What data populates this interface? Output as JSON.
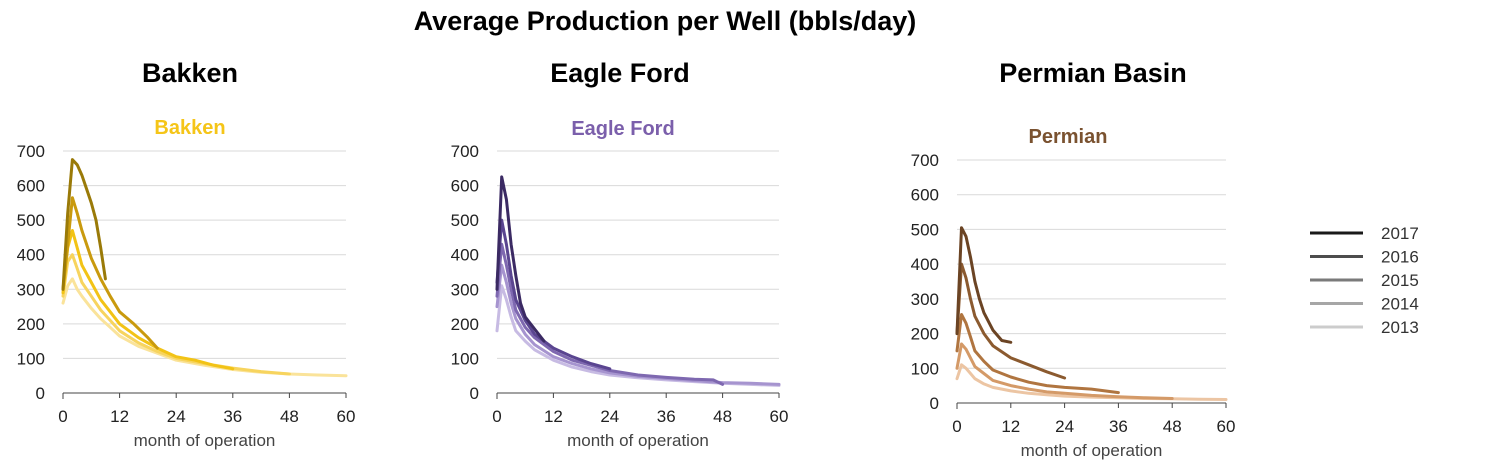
{
  "title": "Average Production per Well (bbls/day)",
  "panels": [
    {
      "heading": "Bakken"
    },
    {
      "heading": "Eagle Ford"
    },
    {
      "heading": "Permian Basin"
    }
  ],
  "legend": {
    "items": [
      {
        "label": "2017",
        "color": "#1a1a1a"
      },
      {
        "label": "2016",
        "color": "#4d4d4d"
      },
      {
        "label": "2015",
        "color": "#7a7a7a"
      },
      {
        "label": "2014",
        "color": "#a6a6a6"
      },
      {
        "label": "2013",
        "color": "#cccccc"
      }
    ]
  },
  "chart_data": [
    {
      "type": "line",
      "title": "Bakken",
      "title_color": "#f5c518",
      "xlabel": "month of operation",
      "ylabel": "",
      "xlim": [
        0,
        60
      ],
      "ylim": [
        0,
        700
      ],
      "xticks": [
        0,
        12,
        24,
        36,
        48,
        60
      ],
      "yticks": [
        0,
        100,
        200,
        300,
        400,
        500,
        600,
        700
      ],
      "grid": true,
      "series": [
        {
          "name": "2017",
          "color": "#9a7a08",
          "points": [
            [
              0,
              300
            ],
            [
              1,
              520
            ],
            [
              2,
              675
            ],
            [
              3,
              660
            ],
            [
              4,
              630
            ],
            [
              5,
              590
            ],
            [
              6,
              550
            ],
            [
              7,
              500
            ],
            [
              8,
              420
            ],
            [
              9,
              330
            ]
          ]
        },
        {
          "name": "2016",
          "color": "#c99a0e",
          "points": [
            [
              0,
              300
            ],
            [
              1,
              430
            ],
            [
              2,
              565
            ],
            [
              3,
              520
            ],
            [
              4,
              470
            ],
            [
              6,
              390
            ],
            [
              8,
              330
            ],
            [
              10,
              280
            ],
            [
              12,
              235
            ],
            [
              15,
              200
            ],
            [
              18,
              160
            ],
            [
              20,
              130
            ]
          ]
        },
        {
          "name": "2015",
          "color": "#f2c316",
          "points": [
            [
              0,
              290
            ],
            [
              1,
              420
            ],
            [
              2,
              470
            ],
            [
              3,
              420
            ],
            [
              4,
              370
            ],
            [
              6,
              320
            ],
            [
              8,
              270
            ],
            [
              10,
              235
            ],
            [
              12,
              200
            ],
            [
              16,
              160
            ],
            [
              20,
              130
            ],
            [
              24,
              105
            ],
            [
              28,
              95
            ],
            [
              32,
              80
            ],
            [
              36,
              70
            ]
          ]
        },
        {
          "name": "2014",
          "color": "#f7d45e",
          "points": [
            [
              0,
              280
            ],
            [
              1,
              380
            ],
            [
              2,
              400
            ],
            [
              3,
              360
            ],
            [
              4,
              320
            ],
            [
              6,
              280
            ],
            [
              8,
              240
            ],
            [
              10,
              210
            ],
            [
              12,
              180
            ],
            [
              16,
              145
            ],
            [
              20,
              120
            ],
            [
              24,
              100
            ],
            [
              30,
              85
            ],
            [
              36,
              72
            ],
            [
              42,
              62
            ],
            [
              48,
              55
            ]
          ]
        },
        {
          "name": "2013",
          "color": "#fae39a",
          "points": [
            [
              0,
              260
            ],
            [
              1,
              310
            ],
            [
              2,
              330
            ],
            [
              3,
              300
            ],
            [
              4,
              280
            ],
            [
              6,
              245
            ],
            [
              8,
              215
            ],
            [
              10,
              190
            ],
            [
              12,
              165
            ],
            [
              16,
              135
            ],
            [
              20,
              115
            ],
            [
              24,
              95
            ],
            [
              30,
              80
            ],
            [
              36,
              68
            ],
            [
              42,
              60
            ],
            [
              48,
              55
            ],
            [
              54,
              52
            ],
            [
              60,
              50
            ]
          ]
        }
      ]
    },
    {
      "type": "line",
      "title": "Eagle Ford",
      "title_color": "#7b5fab",
      "xlabel": "month of operation",
      "ylabel": "",
      "xlim": [
        0,
        60
      ],
      "ylim": [
        0,
        700
      ],
      "xticks": [
        0,
        12,
        24,
        36,
        48,
        60
      ],
      "yticks": [
        0,
        100,
        200,
        300,
        400,
        500,
        600,
        700
      ],
      "grid": true,
      "series": [
        {
          "name": "2017",
          "color": "#3b2a63",
          "points": [
            [
              0,
              300
            ],
            [
              1,
              625
            ],
            [
              2,
              560
            ],
            [
              3,
              430
            ],
            [
              4,
              340
            ],
            [
              5,
              260
            ],
            [
              6,
              220
            ],
            [
              8,
              185
            ],
            [
              10,
              150
            ]
          ]
        },
        {
          "name": "2016",
          "color": "#5a4590",
          "points": [
            [
              0,
              320
            ],
            [
              1,
              500
            ],
            [
              2,
              430
            ],
            [
              3,
              340
            ],
            [
              4,
              270
            ],
            [
              6,
              210
            ],
            [
              8,
              170
            ],
            [
              12,
              130
            ],
            [
              16,
              105
            ],
            [
              20,
              85
            ],
            [
              24,
              70
            ]
          ]
        },
        {
          "name": "2015",
          "color": "#7e68b0",
          "points": [
            [
              0,
              280
            ],
            [
              1,
              430
            ],
            [
              2,
              370
            ],
            [
              3,
              300
            ],
            [
              4,
              240
            ],
            [
              6,
              190
            ],
            [
              8,
              160
            ],
            [
              12,
              120
            ],
            [
              16,
              95
            ],
            [
              20,
              80
            ],
            [
              24,
              65
            ],
            [
              30,
              52
            ],
            [
              36,
              45
            ],
            [
              42,
              40
            ],
            [
              46,
              38
            ],
            [
              48,
              25
            ]
          ]
        },
        {
          "name": "2014",
          "color": "#a694cf",
          "points": [
            [
              0,
              250
            ],
            [
              1,
              370
            ],
            [
              2,
              320
            ],
            [
              3,
              260
            ],
            [
              4,
              215
            ],
            [
              6,
              170
            ],
            [
              8,
              140
            ],
            [
              12,
              105
            ],
            [
              16,
              85
            ],
            [
              20,
              70
            ],
            [
              24,
              58
            ],
            [
              30,
              48
            ],
            [
              36,
              42
            ],
            [
              42,
              36
            ],
            [
              48,
              30
            ],
            [
              54,
              28
            ],
            [
              60,
              25
            ]
          ]
        },
        {
          "name": "2013",
          "color": "#c7bbe3",
          "points": [
            [
              0,
              180
            ],
            [
              1,
              310
            ],
            [
              2,
              270
            ],
            [
              3,
              220
            ],
            [
              4,
              180
            ],
            [
              6,
              150
            ],
            [
              8,
              125
            ],
            [
              12,
              95
            ],
            [
              16,
              75
            ],
            [
              20,
              62
            ],
            [
              24,
              52
            ],
            [
              30,
              44
            ],
            [
              36,
              38
            ],
            [
              42,
              33
            ],
            [
              48,
              28
            ],
            [
              54,
              25
            ],
            [
              60,
              22
            ]
          ]
        }
      ]
    },
    {
      "type": "line",
      "title": "Permian",
      "title_color": "#7a5230",
      "xlabel": "month of operation",
      "ylabel": "",
      "xlim": [
        0,
        60
      ],
      "ylim": [
        0,
        700
      ],
      "xticks": [
        0,
        12,
        24,
        36,
        48,
        60
      ],
      "yticks": [
        0,
        100,
        200,
        300,
        400,
        500,
        600,
        700
      ],
      "grid": true,
      "series": [
        {
          "name": "2017",
          "color": "#6b4424",
          "points": [
            [
              0,
              200
            ],
            [
              1,
              505
            ],
            [
              2,
              480
            ],
            [
              3,
              420
            ],
            [
              4,
              350
            ],
            [
              5,
              300
            ],
            [
              6,
              260
            ],
            [
              8,
              210
            ],
            [
              10,
              180
            ],
            [
              12,
              175
            ]
          ]
        },
        {
          "name": "2016",
          "color": "#8b5a2f",
          "points": [
            [
              0,
              200
            ],
            [
              1,
              400
            ],
            [
              2,
              360
            ],
            [
              3,
              300
            ],
            [
              4,
              250
            ],
            [
              6,
              200
            ],
            [
              8,
              165
            ],
            [
              12,
              130
            ],
            [
              16,
              110
            ],
            [
              20,
              90
            ],
            [
              24,
              72
            ]
          ]
        },
        {
          "name": "2015",
          "color": "#b07540",
          "points": [
            [
              0,
              150
            ],
            [
              1,
              255
            ],
            [
              2,
              230
            ],
            [
              3,
              190
            ],
            [
              4,
              150
            ],
            [
              6,
              120
            ],
            [
              8,
              95
            ],
            [
              12,
              75
            ],
            [
              16,
              60
            ],
            [
              20,
              50
            ],
            [
              24,
              45
            ],
            [
              30,
              40
            ],
            [
              36,
              30
            ]
          ]
        },
        {
          "name": "2014",
          "color": "#d49a68",
          "points": [
            [
              0,
              100
            ],
            [
              1,
              170
            ],
            [
              2,
              155
            ],
            [
              3,
              130
            ],
            [
              4,
              105
            ],
            [
              6,
              85
            ],
            [
              8,
              65
            ],
            [
              12,
              50
            ],
            [
              16,
              40
            ],
            [
              20,
              32
            ],
            [
              24,
              28
            ],
            [
              30,
              22
            ],
            [
              36,
              18
            ],
            [
              42,
              15
            ],
            [
              48,
              13
            ]
          ]
        },
        {
          "name": "2013",
          "color": "#ecc5a3",
          "points": [
            [
              0,
              70
            ],
            [
              1,
              110
            ],
            [
              2,
              100
            ],
            [
              3,
              85
            ],
            [
              4,
              70
            ],
            [
              6,
              55
            ],
            [
              8,
              45
            ],
            [
              12,
              35
            ],
            [
              16,
              28
            ],
            [
              20,
              24
            ],
            [
              24,
              20
            ],
            [
              30,
              17
            ],
            [
              36,
              15
            ],
            [
              42,
              13
            ],
            [
              48,
              12
            ],
            [
              54,
              11
            ],
            [
              60,
              10
            ]
          ]
        }
      ]
    }
  ]
}
